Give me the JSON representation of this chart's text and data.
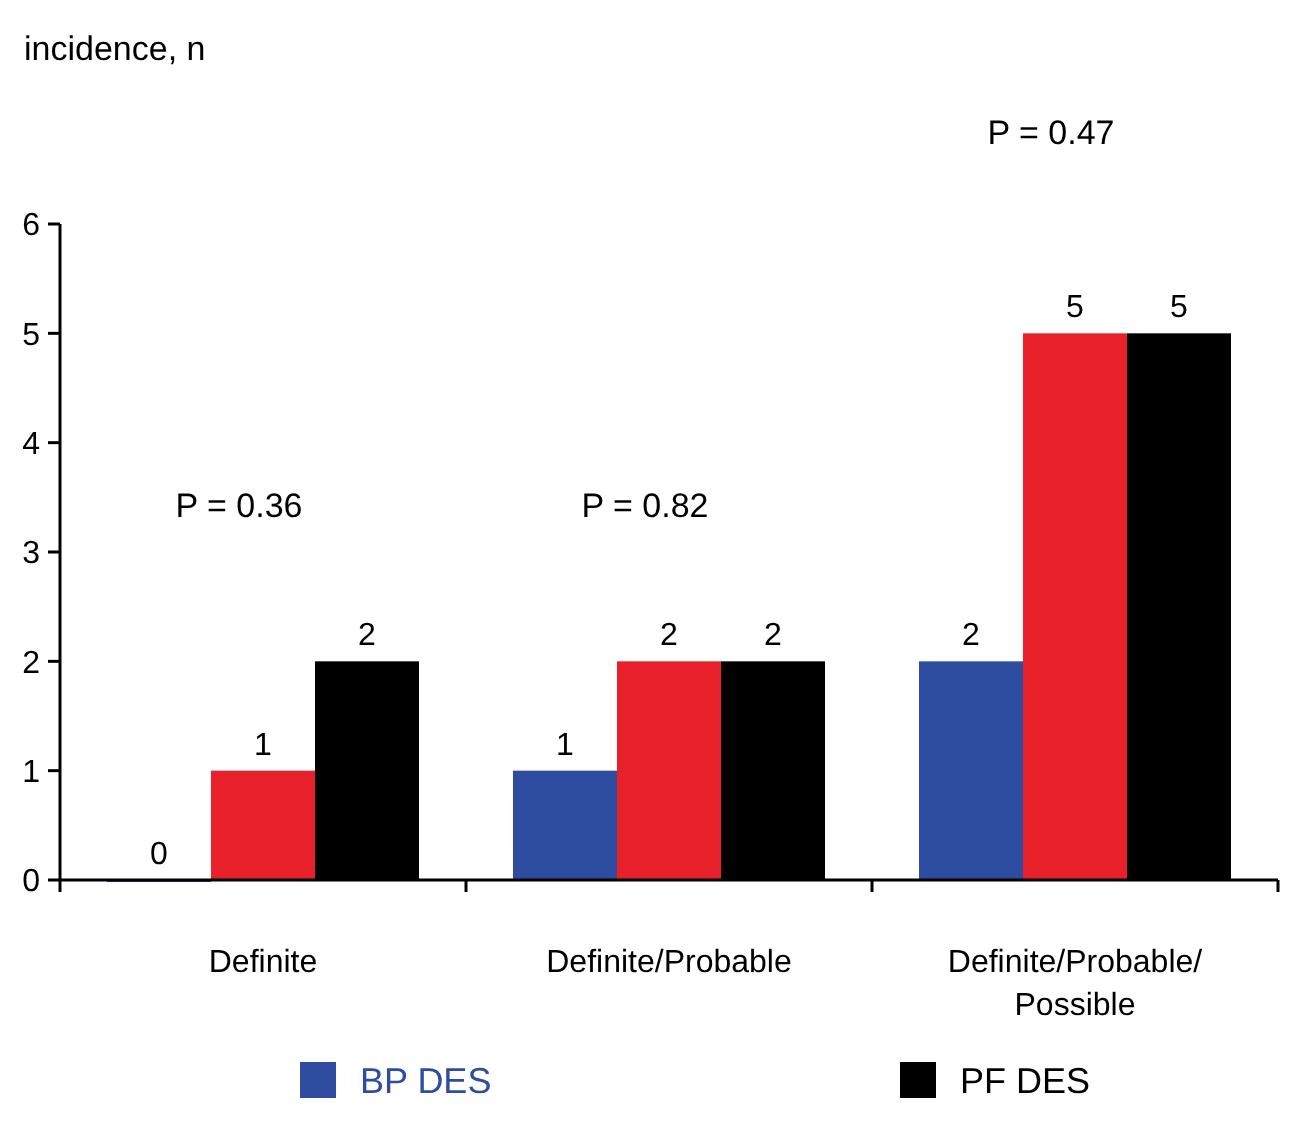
{
  "chart_data": {
    "type": "bar",
    "ylabel": "incidence, n",
    "categories": [
      "Definite",
      "Definite/Probable",
      "Definite/Probable/\nPossible"
    ],
    "series": [
      {
        "name": "BP DES",
        "color": "#2e4da0",
        "values": [
          0,
          1,
          2
        ]
      },
      {
        "color": "#e8202a",
        "values": [
          1,
          2,
          5
        ]
      },
      {
        "name": "PF DES",
        "color": "#000000",
        "values": [
          2,
          2,
          5
        ]
      }
    ],
    "ylim": [
      0,
      6
    ],
    "yticks": [
      0,
      1,
      2,
      3,
      4,
      5,
      6
    ],
    "data_labels": true,
    "legend": "bottom",
    "grid": false,
    "annotations": [
      "P = 0.36",
      "P = 0.82",
      "P = 0.47"
    ]
  }
}
